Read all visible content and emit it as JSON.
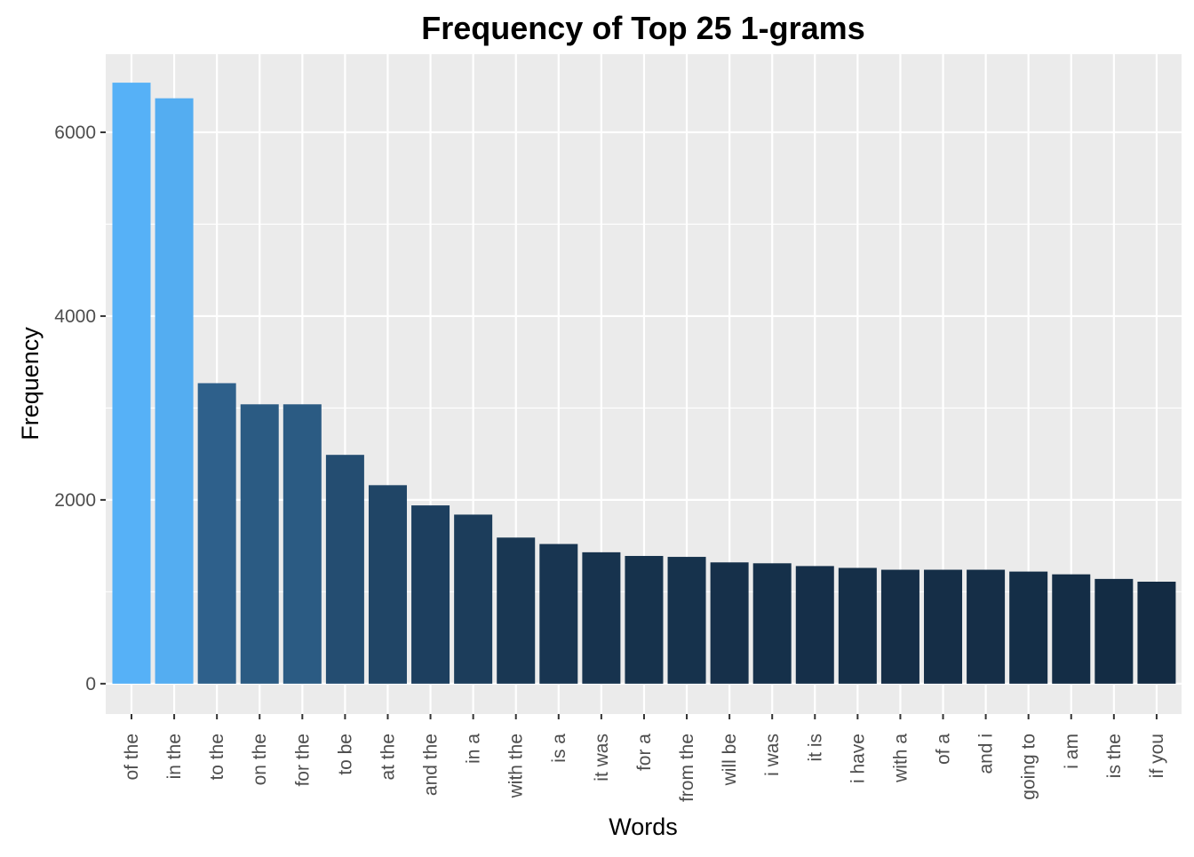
{
  "chart_data": {
    "type": "bar",
    "title": "Frequency of Top 25 1-grams",
    "xlabel": "Words",
    "ylabel": "Frequency",
    "ylim": [
      -330,
      6850
    ],
    "yticks": [
      0,
      2000,
      4000,
      6000
    ],
    "grid": true,
    "legend": "none",
    "categories": [
      "of the",
      "in the",
      "to the",
      "on the",
      "for the",
      "to be",
      "at the",
      "and the",
      "in a",
      "with the",
      "is a",
      "it was",
      "for a",
      "from the",
      "will be",
      "i was",
      "it is",
      "i have",
      "with a",
      "of a",
      "and i",
      "going to",
      "i am",
      "is the",
      "if you"
    ],
    "values": [
      6540,
      6370,
      3270,
      3040,
      3040,
      2490,
      2160,
      1940,
      1840,
      1590,
      1520,
      1430,
      1390,
      1380,
      1320,
      1310,
      1280,
      1260,
      1240,
      1240,
      1240,
      1220,
      1190,
      1140,
      1110
    ],
    "color_scale": {
      "low": "#132b43",
      "high": "#56b1f7"
    },
    "panel_background": "#ebebeb",
    "grid_color": "#ffffff"
  }
}
